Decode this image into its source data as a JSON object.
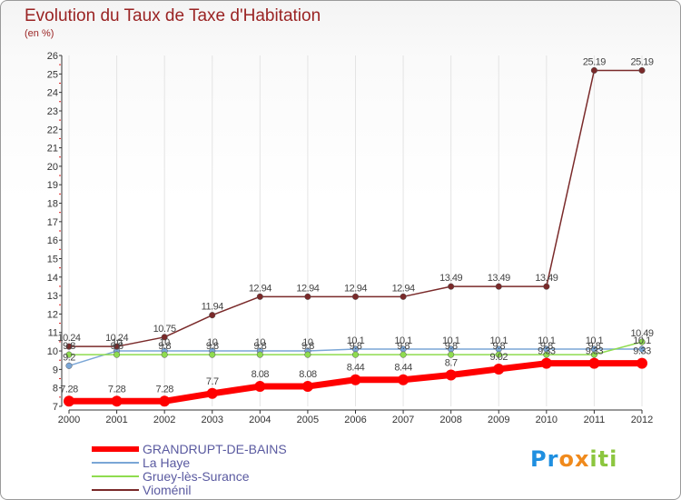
{
  "chart_data": {
    "type": "line",
    "title": "Evolution du Taux de Taxe d'Habitation",
    "unit_label": "(en %)",
    "x": [
      "2000",
      "2001",
      "2002",
      "2003",
      "2004",
      "2005",
      "2006",
      "2007",
      "2008",
      "2009",
      "2010",
      "2011",
      "2012"
    ],
    "ylim": [
      7,
      26
    ],
    "yticks": [
      7,
      8,
      9,
      10,
      11,
      12,
      13,
      14,
      15,
      16,
      17,
      18,
      19,
      20,
      21,
      22,
      23,
      24,
      25,
      26
    ],
    "series": [
      {
        "name": "GRANDRUPT-DE-BAINS",
        "color": "#ff0000",
        "values": [
          7.28,
          7.28,
          7.28,
          7.7,
          8.08,
          8.08,
          8.44,
          8.44,
          8.7,
          9.02,
          9.33,
          9.33,
          9.33
        ],
        "labels": [
          "7.28",
          "7.28",
          "7.28",
          "7.7",
          "8.08",
          "8.08",
          "8.44",
          "8.44",
          "8.7",
          "9.02",
          "9.33",
          "9.33",
          "9.33"
        ]
      },
      {
        "name": "La Haye",
        "color": "#7aa6d6",
        "values": [
          9.2,
          10.0,
          10.0,
          10.0,
          10.0,
          10.0,
          10.1,
          10.1,
          10.1,
          10.1,
          10.1,
          10.1,
          10.1
        ],
        "labels": [
          "9.2",
          "10",
          "10",
          "10",
          "10",
          "10",
          "10.1",
          "10.1",
          "10.1",
          "10.1",
          "10.1",
          "10.1",
          "10.1"
        ]
      },
      {
        "name": "Gruey-lès-Surance",
        "color": "#8fdc4f",
        "values": [
          9.8,
          9.8,
          9.8,
          9.8,
          9.8,
          9.8,
          9.8,
          9.8,
          9.8,
          9.8,
          9.8,
          9.8,
          10.49
        ],
        "labels": [
          "9.8",
          "9.8",
          "9.8",
          "9.8",
          "9.8",
          "9.8",
          "9.8",
          "9.8",
          "9.8",
          "9.8",
          "9.8",
          "9.8",
          "10.49"
        ]
      },
      {
        "name": "Vioménil",
        "color": "#7a2a2a",
        "values": [
          10.24,
          10.24,
          10.75,
          11.94,
          12.94,
          12.94,
          12.94,
          12.94,
          13.49,
          13.49,
          13.49,
          25.19,
          25.19
        ],
        "labels": [
          "10.24",
          "10.24",
          "10.75",
          "11.94",
          "12.94",
          "12.94",
          "12.94",
          "12.94",
          "13.49",
          "13.49",
          "13.49",
          "25.19",
          "25.19"
        ]
      }
    ]
  },
  "legend": [
    {
      "label": "GRANDRUPT-DE-BAINS"
    },
    {
      "label": "La Haye"
    },
    {
      "label": "Gruey-lès-Surance"
    },
    {
      "label": "Vioménil"
    }
  ],
  "logo": {
    "letters": [
      "P",
      "r",
      "o",
      "x",
      "i",
      "t",
      "i"
    ],
    "colors": [
      "#1f8fe0",
      "#1f8fe0",
      "#f08a1c",
      "#f08a1c",
      "#8cc63f",
      "#8cc63f",
      "#8cc63f"
    ]
  }
}
